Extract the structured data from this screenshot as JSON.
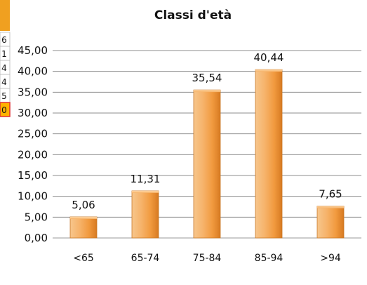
{
  "chart_data": {
    "type": "bar",
    "title": "Classi d'età",
    "xlabel": "",
    "ylabel": "",
    "categories": [
      "<65",
      "65-74",
      "75-84",
      "85-94",
      ">94"
    ],
    "values": [
      5.06,
      11.31,
      35.54,
      40.44,
      7.65
    ],
    "value_labels": [
      "5,06",
      "11,31",
      "35,54",
      "40,44",
      "7,65"
    ],
    "ylim": [
      0,
      45
    ],
    "yticks": [
      0,
      5,
      10,
      15,
      20,
      25,
      30,
      35,
      40,
      45
    ],
    "ytick_labels": [
      "0,00",
      "5,00",
      "10,00",
      "15,00",
      "20,00",
      "25,00",
      "30,00",
      "35,00",
      "40,00",
      "45,00"
    ],
    "grid": true,
    "legend": false,
    "bar_color": "#f2a24a"
  },
  "left_clip": {
    "cells": [
      "6",
      "1",
      "4",
      "4",
      "5",
      "0"
    ],
    "header_color": "#f0a020",
    "highlight_color": "#ffb300",
    "border_color": "#e03030"
  }
}
